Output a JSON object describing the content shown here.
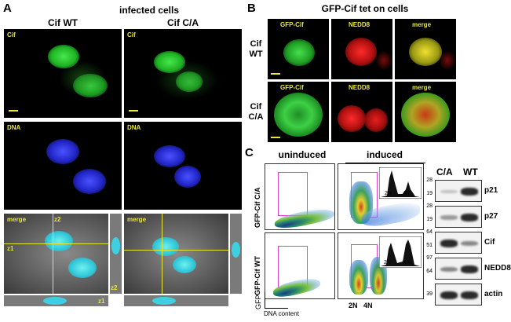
{
  "panelA": {
    "letter": "A",
    "title": "infected cells",
    "col_wt": "Cif WT",
    "col_ca": "Cif C/A",
    "label_cif": "Cif",
    "label_dna": "DNA",
    "label_merge": "merge",
    "label_z1": "z1",
    "label_z2": "z2"
  },
  "panelB": {
    "letter": "B",
    "title": "GFP-Cif tet on cells",
    "row_wt": "Cif\nWT",
    "row_ca": "Cif\nC/A",
    "label_gfp": "GFP-Cif",
    "label_nedd8": "NEDD8",
    "label_merge": "merge"
  },
  "panelC": {
    "letter": "C",
    "uninduced": "uninduced",
    "induced": "induced",
    "row_ca": "GFP-Cif C/A",
    "row_wt": "GFP-Cif WT",
    "gfp_axis": "GFP",
    "dna_axis": "DNA content",
    "ploidy_2n": "2N",
    "ploidy_4n": "4N",
    "blot": {
      "col_ca": "C/A",
      "col_wt": "WT",
      "rows": [
        {
          "protein": "p21",
          "markers": [
            "28",
            "19"
          ],
          "ca": 0.1,
          "wt": 0.9
        },
        {
          "protein": "p27",
          "markers": [
            "28",
            "19"
          ],
          "ca": 0.3,
          "wt": 0.9
        },
        {
          "protein": "Cif",
          "markers": [
            "64",
            "51"
          ],
          "ca": 0.9,
          "wt": 0.4
        },
        {
          "protein": "NEDD8",
          "markers": [
            "97",
            "64"
          ],
          "ca": 0.4,
          "wt": 0.9
        },
        {
          "protein": "actin",
          "markers": [
            "39"
          ],
          "ca": 0.9,
          "wt": 0.9
        }
      ]
    }
  },
  "colors": {
    "green": "#22c42a",
    "blue": "#2a2cff",
    "red": "#e01818",
    "yellow_label": "#e9e63a",
    "gate": "#e040d0"
  }
}
